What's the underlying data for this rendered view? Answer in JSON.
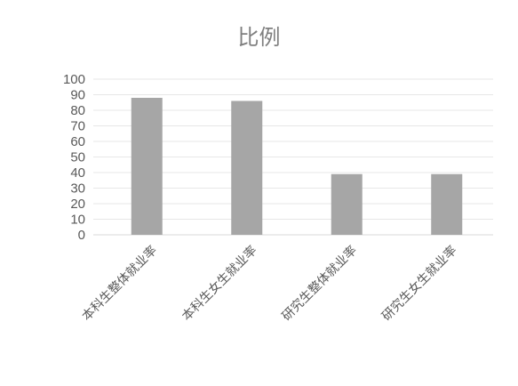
{
  "chart_data": {
    "type": "bar",
    "title": "比例",
    "categories": [
      "本科生整体就业率",
      "本科生女生就业率",
      "研究生整体就业率",
      "研究生女生就业率"
    ],
    "values": [
      88,
      86,
      39,
      39
    ],
    "ylim": [
      0,
      100
    ],
    "yticks": [
      0,
      10,
      20,
      30,
      40,
      50,
      60,
      70,
      80,
      90,
      100
    ],
    "grid": true,
    "bar_color": "#a6a6a6",
    "xlabel": "",
    "ylabel": ""
  }
}
